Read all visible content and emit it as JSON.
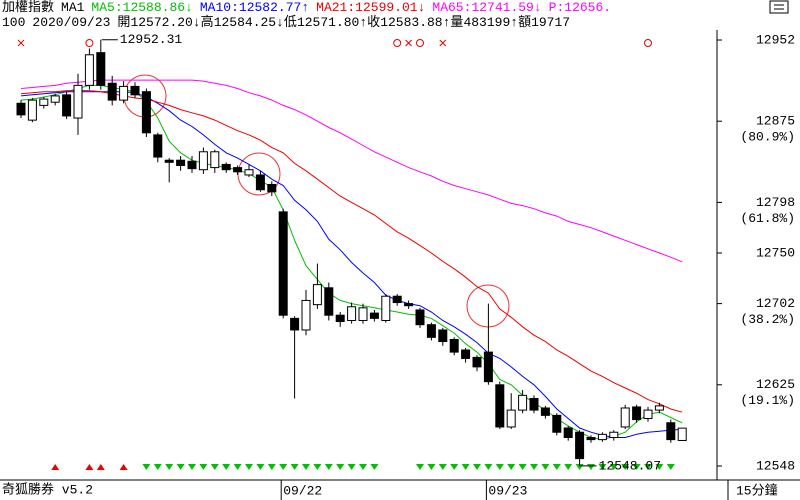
{
  "chart_data": {
    "type": "candlestick",
    "title": "加權指數",
    "period": "MA1",
    "legend_sep": ":",
    "price": "P:12656.",
    "categories": [
      null,
      null,
      null,
      null,
      null,
      null,
      null,
      null,
      null,
      null,
      null,
      null,
      null,
      null,
      null,
      null,
      null,
      null,
      null,
      null,
      null,
      null,
      null,
      "09/22",
      null,
      null,
      null,
      null,
      null,
      null,
      null,
      null,
      null,
      null,
      null,
      null,
      null,
      null,
      null,
      null,
      null,
      "09/23",
      null,
      null,
      null,
      null,
      null,
      null,
      null,
      null,
      null,
      null,
      null,
      null,
      null,
      null,
      null,
      null,
      null
    ],
    "open": [
      12892,
      12876,
      12890,
      12893,
      12900,
      12878,
      12909,
      12940,
      12911,
      12895,
      12908,
      12903,
      12862,
      12838,
      12838,
      12837,
      12829,
      12831,
      12834,
      12831,
      12824,
      12824,
      12815,
      12789,
      12688,
      12677,
      12701,
      12717,
      12691,
      12686,
      12686,
      12693,
      12686,
      12709,
      12702,
      12696,
      12682,
      12677,
      12668,
      12658,
      12651,
      12656,
      12625,
      12585,
      12601,
      12612,
      12603,
      12596,
      12584,
      12580,
      12575,
      12573,
      12575,
      12585,
      12604,
      12593,
      12601,
      12589,
      12572.2
    ],
    "high": [
      12895,
      12897,
      12898,
      12901,
      12903,
      12920,
      12944,
      12952.31,
      12918,
      12913,
      12912,
      12906,
      12864,
      12840,
      12842,
      12842,
      12850,
      12848,
      12836,
      12833,
      12834,
      12828,
      12818,
      12792,
      12690,
      12715,
      12740,
      12722,
      12694,
      12703,
      12702,
      12696,
      12711,
      12711,
      12705,
      12698,
      12684,
      12679,
      12670,
      12660,
      12653,
      12702,
      12628,
      12617,
      12620,
      12615,
      12605,
      12598,
      12586,
      12582,
      12577,
      12580,
      12582,
      12606,
      12606,
      12604,
      12608,
      12592,
      12584.25
    ],
    "low": [
      12878,
      12874,
      12887,
      12890,
      12877,
      12862,
      12905,
      12905,
      12890,
      12892,
      12897,
      12860,
      12836,
      12817,
      12828,
      12826,
      12825,
      12826,
      12826,
      12824,
      12822,
      12808,
      12804,
      12688,
      12612,
      12672,
      12697,
      12686,
      12680,
      12683,
      12683,
      12685,
      12684,
      12700,
      12697,
      12679,
      12667,
      12662,
      12653,
      12646,
      12638,
      12625,
      12583,
      12583,
      12598,
      12598,
      12593,
      12577,
      12572,
      12548.07,
      12570,
      12571,
      12572,
      12583,
      12589,
      12590,
      12598,
      12570,
      12571.8
    ],
    "close": [
      12881,
      12895,
      12896,
      12899,
      12880,
      12909,
      12938,
      12909,
      12895,
      12908,
      12900,
      12864,
      12841,
      12836,
      12833,
      12830,
      12846,
      12846,
      12829,
      12827,
      12829,
      12810,
      12808,
      12691,
      12677,
      12705,
      12720,
      12691,
      12685,
      12699,
      12698,
      12688,
      12709,
      12703,
      12700,
      12682,
      12670,
      12666,
      12656,
      12650,
      12642,
      12628,
      12585,
      12601,
      12615,
      12601,
      12596,
      12580,
      12575,
      12555,
      12573,
      12578,
      12580,
      12603,
      12592,
      12601,
      12605,
      12573,
      12583.88
    ],
    "series": [
      {
        "name": "MA5",
        "color": "#00c000",
        "trend": "↓",
        "values": [
          12895,
          12896,
          12898,
          12900,
          12903,
          12906,
          12909,
          12909,
          12907,
          12905,
          12903,
          12894,
          12878,
          12856,
          12845,
          12838,
          12835,
          12833,
          12831,
          12829,
          12825,
          12819,
          12812,
          12791,
          12762,
          12738,
          12725,
          12712,
          12705,
          12702,
          12700,
          12698,
          12696,
          12694,
          12692,
          12691,
          12688,
          12681,
          12674,
          12664,
          12656,
          12645,
          12630,
          12625,
          12615,
          12608,
          12601,
          12593,
          12586,
          12580,
          12575,
          12573,
          12576,
          12580,
          12590,
          12597,
          12599,
          12594,
          12588.86
        ]
      },
      {
        "name": "MA10",
        "color": "#0000ff",
        "trend": "↑",
        "values": [
          12899,
          12900,
          12901,
          12902,
          12903,
          12903,
          12903,
          12903,
          12903,
          12903,
          12902,
          12898,
          12892,
          12885,
          12876,
          12870,
          12862,
          12853,
          12845,
          12840,
          12834,
          12828,
          12820,
          12814,
          12800,
          12791,
          12780,
          12763,
          12753,
          12741,
          12731,
          12722,
          12710,
          12705,
          12702,
          12700,
          12694,
          12686,
          12680,
          12673,
          12665,
          12655,
          12650,
          12642,
          12633,
          12625,
          12614,
          12602,
          12593,
          12584,
          12580,
          12577,
          12575,
          12575,
          12578,
          12580,
          12581,
          12582,
          12582.77
        ]
      },
      {
        "name": "MA21",
        "color": "#ee0000",
        "trend": "↓",
        "values": [
          12901,
          12902,
          12903,
          12903,
          12904,
          12904,
          12904,
          12903,
          12901,
          12899,
          12897,
          12896,
          12893,
          12890,
          12886,
          12883,
          12880,
          12876,
          12871,
          12866,
          12862,
          12857,
          12850,
          12845,
          12835,
          12828,
          12820,
          12812,
          12804,
          12798,
          12792,
          12786,
          12778,
          12770,
          12764,
          12757,
          12750,
          12742,
          12735,
          12727,
          12718,
          12712,
          12697,
          12689,
          12680,
          12672,
          12666,
          12658,
          12652,
          12645,
          12638,
          12633,
          12627,
          12622,
          12617,
          12611,
          12607,
          12602,
          12599.01
        ]
      },
      {
        "name": "MA65",
        "color": "#ff00ff",
        "trend": "↓",
        "values": [
          12906,
          12907,
          12908,
          12909,
          12911,
          12912,
          12913,
          12914,
          12914,
          12914,
          12914,
          12914,
          12914,
          12914,
          12914,
          12914,
          12913,
          12911,
          12909,
          12906,
          12902,
          12899,
          12895,
          12890,
          12886,
          12881,
          12875,
          12869,
          12864,
          12858,
          12852,
          12846,
          12841,
          12836,
          12831,
          12827,
          12823,
          12818,
          12814,
          12811,
          12808,
          12805,
          12801,
          12797,
          12795,
          12792,
          12788,
          12785,
          12780,
          12777,
          12774,
          12770,
          12766,
          12762,
          12758,
          12754,
          12750,
          12746,
          12741.59
        ]
      }
    ],
    "ylim": [
      12536.6,
      12961.5
    ],
    "yticks": [
      12952,
      12875,
      12798,
      12750,
      12702,
      12625,
      12548
    ],
    "fib_labels": [
      {
        "value": 12875,
        "label": "(80.9%)"
      },
      {
        "value": 12798,
        "label": "(61.8%)"
      },
      {
        "value": 12702,
        "label": "(38.2%)"
      },
      {
        "value": 12625,
        "label": "(19.1%)"
      }
    ],
    "annotations": [
      {
        "value": 12952.31,
        "label": "12952.31"
      },
      {
        "value": 12548.07,
        "label": "12548.07"
      }
    ],
    "info": {
      "code": "100",
      "date": "2020/09/23",
      "fields": [
        {
          "label": "開",
          "value": 12572.2,
          "value_label": "12572.20",
          "trend": "↓"
        },
        {
          "label": "高",
          "value": 12584.25,
          "value_label": "12584.25",
          "trend": "↓"
        },
        {
          "label": "低",
          "value": 12571.8,
          "value_label": "12571.80",
          "trend": "↑"
        },
        {
          "label": "收",
          "value": 12583.88,
          "value_label": "12583.88",
          "trend": "↑"
        },
        {
          "label": "量",
          "value": 483199,
          "trend": "↑"
        },
        {
          "label": "額",
          "value_label": "19717"
        }
      ]
    }
  },
  "footer": {
    "app": "奇狐勝券 v5.2",
    "interval": "15分鐘"
  }
}
